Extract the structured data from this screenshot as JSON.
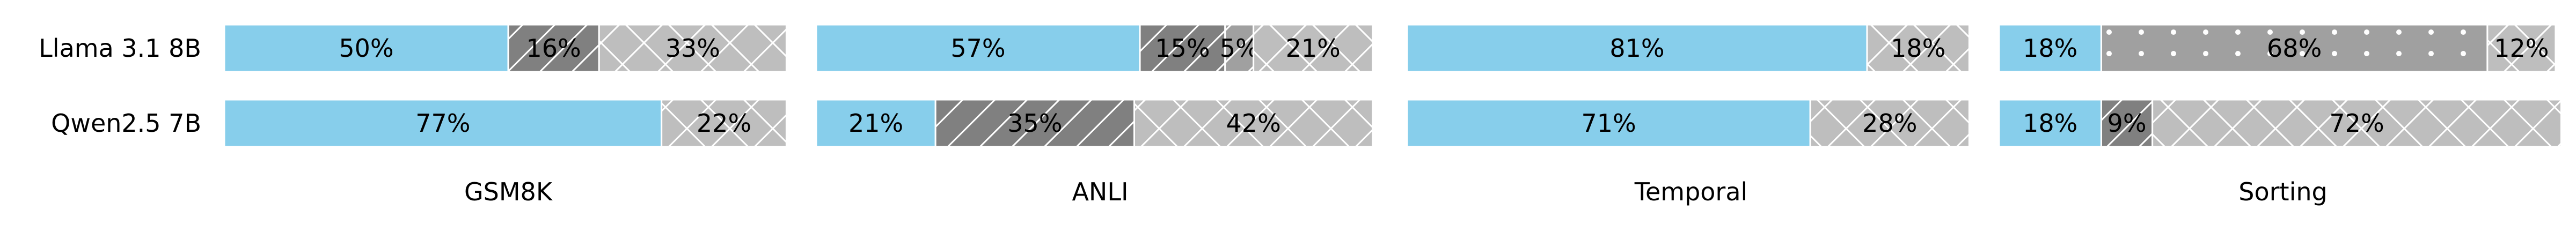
{
  "chart_data": {
    "type": "bar",
    "orientation": "horizontal",
    "stacked": true,
    "normalized": true,
    "models": [
      "Llama 3.1 8B",
      "Qwen2.5 7B"
    ],
    "panels": [
      {
        "title": "GSM8K",
        "rows": [
          {
            "model": "Llama 3.1 8B",
            "segments": [
              {
                "value": 50,
                "label": "50%",
                "style": "solid"
              },
              {
                "value": 16,
                "label": "16%",
                "style": "dark-hatch"
              },
              {
                "value": 33,
                "label": "33%",
                "style": "cross-hatch"
              }
            ]
          },
          {
            "model": "Qwen2.5 7B",
            "segments": [
              {
                "value": 77,
                "label": "77%",
                "style": "solid"
              },
              {
                "value": 0,
                "label": "",
                "style": "dark-hatch"
              },
              {
                "value": 22,
                "label": "22%",
                "style": "cross-hatch"
              }
            ]
          }
        ]
      },
      {
        "title": "ANLI",
        "rows": [
          {
            "model": "Llama 3.1 8B",
            "segments": [
              {
                "value": 57,
                "label": "57%",
                "style": "solid"
              },
              {
                "value": 15,
                "label": "15%",
                "style": "dark-hatch"
              },
              {
                "value": 5,
                "label": "5%",
                "style": "mid-hatch"
              },
              {
                "value": 21,
                "label": "21%",
                "style": "cross-hatch"
              }
            ]
          },
          {
            "model": "Qwen2.5 7B",
            "segments": [
              {
                "value": 21,
                "label": "21%",
                "style": "solid"
              },
              {
                "value": 35,
                "label": "35%",
                "style": "dark-hatch"
              },
              {
                "value": 42,
                "label": "42%",
                "style": "cross-hatch"
              }
            ]
          }
        ]
      },
      {
        "title": "Temporal",
        "rows": [
          {
            "model": "Llama 3.1 8B",
            "segments": [
              {
                "value": 81,
                "label": "81%",
                "style": "solid"
              },
              {
                "value": 18,
                "label": "18%",
                "style": "cross-hatch"
              }
            ]
          },
          {
            "model": "Qwen2.5 7B",
            "segments": [
              {
                "value": 71,
                "label": "71%",
                "style": "solid"
              },
              {
                "value": 28,
                "label": "28%",
                "style": "cross-hatch"
              }
            ]
          }
        ]
      },
      {
        "title": "Sorting",
        "rows": [
          {
            "model": "Llama 3.1 8B",
            "segments": [
              {
                "value": 18,
                "label": "18%",
                "style": "solid"
              },
              {
                "value": 68,
                "label": "68%",
                "style": "dots"
              },
              {
                "value": 12,
                "label": "12%",
                "style": "cross-hatch"
              }
            ]
          },
          {
            "model": "Qwen2.5 7B",
            "segments": [
              {
                "value": 18,
                "label": "18%",
                "style": "solid"
              },
              {
                "value": 9,
                "label": "9%",
                "style": "dark-hatch"
              },
              {
                "value": 72,
                "label": "72%",
                "style": "cross-hatch"
              }
            ]
          }
        ]
      }
    ],
    "xlim": [
      0,
      100
    ],
    "colors": {
      "solid": "#87ceeb",
      "dark-hatch": "#808080",
      "mid-hatch": "#a0a0a0",
      "dots": "#a0a0a0",
      "cross-hatch": "#bebebe"
    },
    "grid": false,
    "legend": "none"
  }
}
